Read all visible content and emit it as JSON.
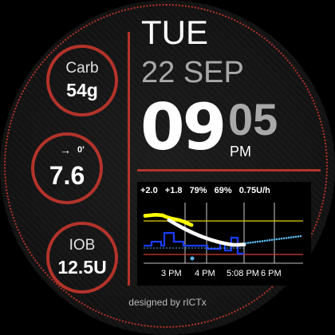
{
  "carb": {
    "label": "Carb",
    "value": "54g"
  },
  "delta": {
    "arrow": "→",
    "minutes": "0'",
    "value": "7.6"
  },
  "iob": {
    "label": "IOB",
    "value": "12.5U"
  },
  "clock": {
    "day": "TUE",
    "date": "22 SEP",
    "hour": "09",
    "minute": "05",
    "ampm": "PM"
  },
  "graph": {
    "stats": [
      "+2.0",
      "+1.8",
      "79%",
      "69%",
      "0.75U/h"
    ],
    "time_labels": [
      "3 PM",
      "4 PM",
      "5:08 PM",
      "6 PM"
    ]
  },
  "credit": "designed by rICTx",
  "colors": {
    "accent": "#b3332a",
    "range_high": "#e6d000",
    "range_low": "#d23a30",
    "bg_glucose": "#ffffff",
    "prediction": "#ffff00",
    "basal": "#1a3cff",
    "forecast": "#5ab4e6"
  }
}
